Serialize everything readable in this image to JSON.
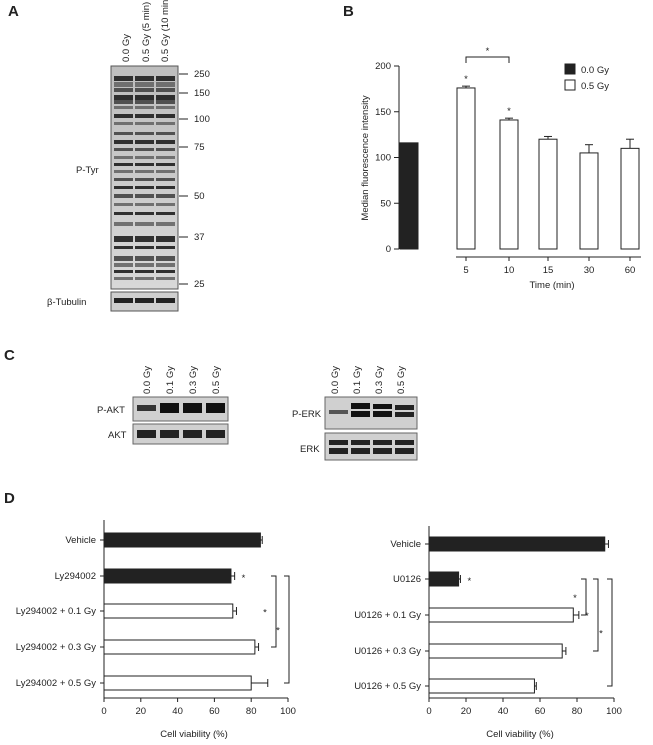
{
  "panels": {
    "a": "A",
    "b": "B",
    "c": "C",
    "d": "D"
  },
  "blot_a": {
    "lanes": [
      "0.0 Gy",
      "0.5 Gy (5 min)",
      "0.5 Gy (10 min)"
    ],
    "mw_markers": [
      250,
      150,
      100,
      75,
      50,
      37,
      25
    ],
    "row_labels": {
      "ptyr": "P-Tyr",
      "tubulin": "β-Tubulin"
    }
  },
  "blot_c": {
    "lanes": [
      "0.0 Gy",
      "0.1 Gy",
      "0.3 Gy",
      "0.5 Gy"
    ],
    "left": {
      "top": "P-AKT",
      "bottom": "AKT"
    },
    "right": {
      "top": "P-ERK",
      "bottom": "ERK"
    }
  },
  "chart_data": [
    {
      "type": "bar",
      "panel": "B",
      "ylabel": "Median fluorescence intensity",
      "xlabel": "Time (min)",
      "ylim": [
        0,
        200
      ],
      "yticks": [
        0,
        50,
        100,
        150,
        200
      ],
      "categories": [
        "",
        "5",
        "10",
        "15",
        "30",
        "60"
      ],
      "series": [
        {
          "name": "0.0 Gy",
          "color": "#222222",
          "values": [
            116,
            null,
            null,
            null,
            null,
            null
          ]
        },
        {
          "name": "0.5 Gy",
          "color": "#ffffff",
          "values": [
            null,
            176,
            141,
            120,
            105,
            110
          ]
        }
      ],
      "errors": [
        0,
        2,
        2,
        3,
        9,
        10
      ],
      "significance": [
        "",
        "*",
        "*",
        "",
        "",
        ""
      ],
      "bracket": {
        "from": 1,
        "to": 2,
        "label": "*"
      },
      "legend": "top-right"
    },
    {
      "type": "bar",
      "orientation": "horizontal",
      "panel": "D-left",
      "xlabel": "Cell viability (%)",
      "xlim": [
        0,
        100
      ],
      "xticks": [
        0,
        20,
        40,
        60,
        80,
        100
      ],
      "categories": [
        "Vehicle",
        "Ly294002",
        "Ly294002 + 0.1 Gy",
        "Ly294002 + 0.3 Gy",
        "Ly294002 + 0.5 Gy"
      ],
      "values": [
        85,
        69,
        70,
        82,
        80
      ],
      "errors": [
        1,
        2,
        2,
        2,
        9
      ],
      "colors": [
        "#222222",
        "#222222",
        "#ffffff",
        "#ffffff",
        "#ffffff"
      ],
      "significance": [
        "",
        "*",
        "",
        "",
        ""
      ],
      "brackets": [
        {
          "from": 1,
          "to": 3,
          "label": "*"
        },
        {
          "from": 1,
          "to": 4,
          "label": "*"
        }
      ]
    },
    {
      "type": "bar",
      "orientation": "horizontal",
      "panel": "D-right",
      "xlabel": "Cell viability (%)",
      "xlim": [
        0,
        100
      ],
      "xticks": [
        0,
        20,
        40,
        60,
        80,
        100
      ],
      "categories": [
        "Vehicle",
        "U0126",
        "U0126 + 0.1 Gy",
        "U0126 + 0.3 Gy",
        "U0126 + 0.5 Gy"
      ],
      "values": [
        95,
        16,
        78,
        72,
        57
      ],
      "errors": [
        2,
        1,
        3,
        2,
        1
      ],
      "colors": [
        "#222222",
        "#222222",
        "#ffffff",
        "#ffffff",
        "#ffffff"
      ],
      "significance": [
        "",
        "*",
        "",
        "",
        ""
      ],
      "brackets": [
        {
          "from": 1,
          "to": 2,
          "label": "*"
        },
        {
          "from": 1,
          "to": 3,
          "label": "*"
        },
        {
          "from": 1,
          "to": 4,
          "label": "*"
        }
      ]
    }
  ]
}
